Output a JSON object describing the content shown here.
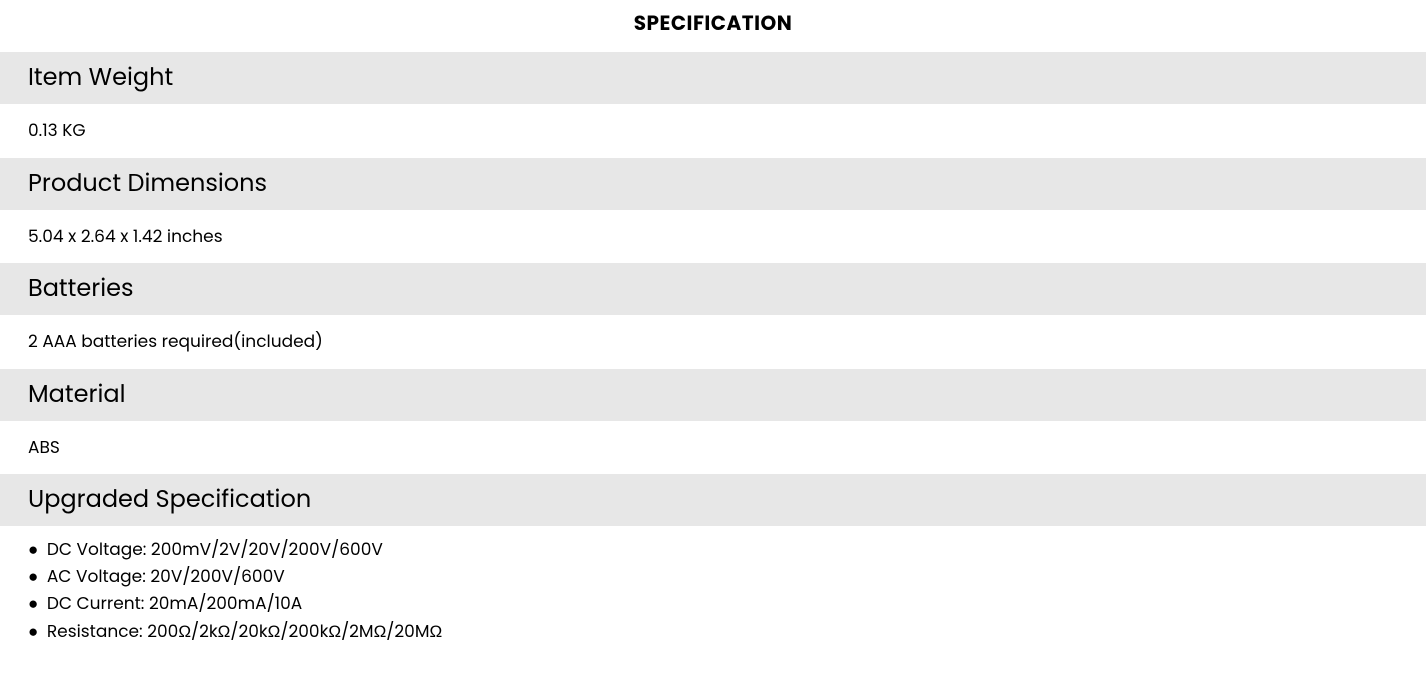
{
  "title": "SPECIFICATION",
  "colors": {
    "header_bg": "#e7e7e7",
    "value_bg": "#ffffff",
    "text": "#000000"
  },
  "typography": {
    "title_fontsize": 20,
    "header_fontsize": 24,
    "value_fontsize": 17,
    "title_fontweight": 700,
    "header_fontweight": 400,
    "value_fontweight": 400
  },
  "rows": [
    {
      "label": "Item Weight",
      "value": "0.13 KG"
    },
    {
      "label": "Product Dimensions",
      "value": "5.04 x 2.64 x 1.42 inches"
    },
    {
      "label": "Batteries",
      "value": "2 AAA batteries required(included)"
    },
    {
      "label": "Material",
      "value": "ABS"
    }
  ],
  "upgraded": {
    "label": "Upgraded Specification",
    "items": [
      "DC Voltage: 200mV/2V/20V/200V/600V",
      "AC Voltage: 20V/200V/600V",
      "DC Current: 20mA/200mA/10A",
      "Resistance: 200Ω/2kΩ/20kΩ/200kΩ/2MΩ/20MΩ"
    ]
  },
  "bullet_char": "●"
}
